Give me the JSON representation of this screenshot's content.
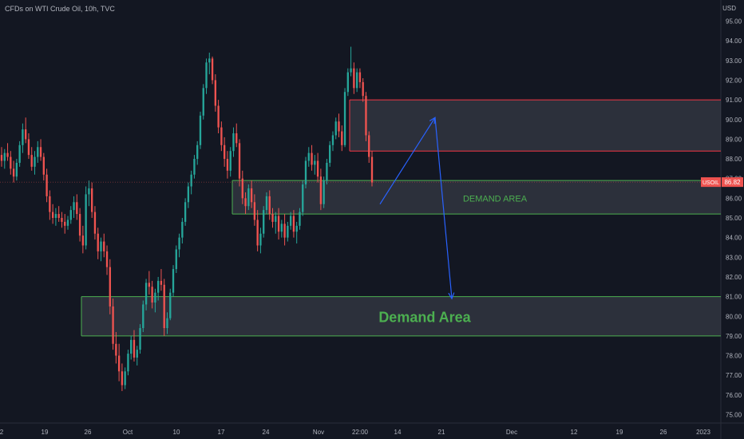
{
  "header": {
    "title": "CFDs on WTI Crude Oil, 10h, TVC"
  },
  "price_axis": {
    "unit": "USD",
    "ticks": [
      "95.00",
      "94.00",
      "93.00",
      "92.00",
      "91.00",
      "90.00",
      "89.00",
      "88.00",
      "87.00",
      "86.00",
      "85.00",
      "84.00",
      "83.00",
      "82.00",
      "81.00",
      "80.00",
      "79.00",
      "78.00",
      "77.00",
      "76.00",
      "75.00"
    ],
    "last_price_symbol": "USOIL",
    "last_price": "86.82"
  },
  "time_axis": {
    "labels": [
      "2",
      "19",
      "26",
      "Oct",
      "10",
      "17",
      "24",
      "Nov",
      "22:00",
      "14",
      "21",
      "Dec",
      "12",
      "19",
      "26",
      "2023"
    ]
  },
  "annotations": {
    "demand_area_upper": "DEMAND AREA",
    "demand_area_lower": "Demand Area"
  },
  "colors": {
    "background": "#131722",
    "up_candle": "#26a69a",
    "down_candle": "#ef5350",
    "zone_green": "#4caf50",
    "zone_red": "#f23645",
    "arrow": "#2962ff",
    "label_green": "#4caf50"
  },
  "chart_data": {
    "type": "candlestick",
    "title": "CFDs on WTI Crude Oil, 10h, TVC",
    "y_unit": "USD",
    "ylim": [
      74.6,
      95.5
    ],
    "last_price": 86.82,
    "zones": [
      {
        "kind": "supply",
        "color": "red",
        "high": 91.0,
        "low": 88.4
      },
      {
        "kind": "demand",
        "label": "DEMAND AREA",
        "color": "green",
        "high": 86.9,
        "low": 85.2
      },
      {
        "kind": "demand",
        "label": "Demand Area",
        "color": "green",
        "high": 81.0,
        "low": 79.0
      }
    ],
    "arrows": [
      {
        "from_price": 85.7,
        "to_price": 90.1
      },
      {
        "from_price": 90.1,
        "to_price": 80.9
      }
    ],
    "candles": [
      [
        88.2,
        88.6,
        87.6,
        87.9
      ],
      [
        87.9,
        88.5,
        87.5,
        88.3
      ],
      [
        88.3,
        88.8,
        87.9,
        88.1
      ],
      [
        88.1,
        88.4,
        87.2,
        87.5
      ],
      [
        87.5,
        87.9,
        86.8,
        87.1
      ],
      [
        87.1,
        88.0,
        86.9,
        87.8
      ],
      [
        87.8,
        88.9,
        87.6,
        88.7
      ],
      [
        88.7,
        89.8,
        88.3,
        89.5
      ],
      [
        89.5,
        90.1,
        88.8,
        89.0
      ],
      [
        89.0,
        89.3,
        88.0,
        88.2
      ],
      [
        88.2,
        88.6,
        87.4,
        87.6
      ],
      [
        87.6,
        88.4,
        87.2,
        88.1
      ],
      [
        88.1,
        88.9,
        87.8,
        88.6
      ],
      [
        88.6,
        89.0,
        87.9,
        88.1
      ],
      [
        88.1,
        88.3,
        86.9,
        87.2
      ],
      [
        87.2,
        87.5,
        85.8,
        86.1
      ],
      [
        86.1,
        86.4,
        84.9,
        85.3
      ],
      [
        85.3,
        85.7,
        84.7,
        85.0
      ],
      [
        85.0,
        85.5,
        84.6,
        85.2
      ],
      [
        85.2,
        85.6,
        84.8,
        85.0
      ],
      [
        85.0,
        85.3,
        84.5,
        84.8
      ],
      [
        84.8,
        85.2,
        84.2,
        84.6
      ],
      [
        84.6,
        85.1,
        84.4,
        84.9
      ],
      [
        84.9,
        85.6,
        84.7,
        85.4
      ],
      [
        85.4,
        86.1,
        85.0,
        85.8
      ],
      [
        85.8,
        86.2,
        84.9,
        85.2
      ],
      [
        85.2,
        85.5,
        83.8,
        84.1
      ],
      [
        84.1,
        84.6,
        83.2,
        83.6
      ],
      [
        83.6,
        86.6,
        83.4,
        86.2
      ],
      [
        86.2,
        86.9,
        85.6,
        86.5
      ],
      [
        86.5,
        86.8,
        85.0,
        85.3
      ],
      [
        85.3,
        85.6,
        83.9,
        84.2
      ],
      [
        84.2,
        84.5,
        82.9,
        83.3
      ],
      [
        83.3,
        84.0,
        82.8,
        83.8
      ],
      [
        83.8,
        84.2,
        83.0,
        83.3
      ],
      [
        83.3,
        83.6,
        82.1,
        82.5
      ],
      [
        82.5,
        82.9,
        80.1,
        80.5
      ],
      [
        80.5,
        80.9,
        78.3,
        78.6
      ],
      [
        78.6,
        79.2,
        77.6,
        78.0
      ],
      [
        78.0,
        78.6,
        76.7,
        77.2
      ],
      [
        77.2,
        77.6,
        76.2,
        76.5
      ],
      [
        76.5,
        77.4,
        76.3,
        77.2
      ],
      [
        77.2,
        78.3,
        77.0,
        78.1
      ],
      [
        78.1,
        79.0,
        77.8,
        78.8
      ],
      [
        78.8,
        79.3,
        77.7,
        77.9
      ],
      [
        77.9,
        78.5,
        77.5,
        78.3
      ],
      [
        78.3,
        79.6,
        78.1,
        79.4
      ],
      [
        79.4,
        80.8,
        79.2,
        80.6
      ],
      [
        80.6,
        81.9,
        80.3,
        81.7
      ],
      [
        81.7,
        82.3,
        81.1,
        81.5
      ],
      [
        81.5,
        81.8,
        80.4,
        80.7
      ],
      [
        80.7,
        81.4,
        80.2,
        81.2
      ],
      [
        81.2,
        82.0,
        80.8,
        81.8
      ],
      [
        81.8,
        82.4,
        81.3,
        81.6
      ],
      [
        81.6,
        81.9,
        79.0,
        79.4
      ],
      [
        79.4,
        80.2,
        79.1,
        79.9
      ],
      [
        79.9,
        81.4,
        79.8,
        81.2
      ],
      [
        81.2,
        82.6,
        81.0,
        82.4
      ],
      [
        82.4,
        83.6,
        82.2,
        83.4
      ],
      [
        83.4,
        84.2,
        83.0,
        84.0
      ],
      [
        84.0,
        85.0,
        83.7,
        84.8
      ],
      [
        84.8,
        86.0,
        84.6,
        85.8
      ],
      [
        85.8,
        86.8,
        85.5,
        86.6
      ],
      [
        86.6,
        87.4,
        86.2,
        87.2
      ],
      [
        87.2,
        88.2,
        87.0,
        88.0
      ],
      [
        88.0,
        88.9,
        87.7,
        88.7
      ],
      [
        88.7,
        90.4,
        88.5,
        90.2
      ],
      [
        90.2,
        91.8,
        90.0,
        91.6
      ],
      [
        91.6,
        93.1,
        91.3,
        92.9
      ],
      [
        92.9,
        93.4,
        92.3,
        93.1
      ],
      [
        93.1,
        93.2,
        91.8,
        92.0
      ],
      [
        92.0,
        92.3,
        90.4,
        90.7
      ],
      [
        90.7,
        91.0,
        89.3,
        89.6
      ],
      [
        89.6,
        89.9,
        88.4,
        88.7
      ],
      [
        88.7,
        89.1,
        87.6,
        88.0
      ],
      [
        88.0,
        88.4,
        87.0,
        87.4
      ],
      [
        87.4,
        88.6,
        87.1,
        88.4
      ],
      [
        88.4,
        89.6,
        88.1,
        89.3
      ],
      [
        89.3,
        89.8,
        88.6,
        88.8
      ],
      [
        88.8,
        89.0,
        86.6,
        87.0
      ],
      [
        87.0,
        87.4,
        85.7,
        86.0
      ],
      [
        86.0,
        86.3,
        85.2,
        85.6
      ],
      [
        85.6,
        86.7,
        85.4,
        86.5
      ],
      [
        86.5,
        86.9,
        85.5,
        85.8
      ],
      [
        85.8,
        86.2,
        84.6,
        84.9
      ],
      [
        84.9,
        85.4,
        83.3,
        83.6
      ],
      [
        83.6,
        84.5,
        83.2,
        84.2
      ],
      [
        84.2,
        85.6,
        84.0,
        85.4
      ],
      [
        85.4,
        86.3,
        85.2,
        86.1
      ],
      [
        86.1,
        86.4,
        84.9,
        85.2
      ],
      [
        85.2,
        85.5,
        84.5,
        84.8
      ],
      [
        84.8,
        85.3,
        84.2,
        85.1
      ],
      [
        85.1,
        85.5,
        83.9,
        84.3
      ],
      [
        84.3,
        84.9,
        84.0,
        84.7
      ],
      [
        84.7,
        85.2,
        83.6,
        84.0
      ],
      [
        84.0,
        84.8,
        83.8,
        84.6
      ],
      [
        84.6,
        85.3,
        84.4,
        85.1
      ],
      [
        85.1,
        85.4,
        84.0,
        84.3
      ],
      [
        84.3,
        84.8,
        83.7,
        84.6
      ],
      [
        84.6,
        85.5,
        84.4,
        85.3
      ],
      [
        85.3,
        86.9,
        85.1,
        86.7
      ],
      [
        86.7,
        88.1,
        86.5,
        87.9
      ],
      [
        87.9,
        88.6,
        87.6,
        88.3
      ],
      [
        88.3,
        88.7,
        87.4,
        87.7
      ],
      [
        87.7,
        88.2,
        87.2,
        87.9
      ],
      [
        87.9,
        88.3,
        86.8,
        87.1
      ],
      [
        87.1,
        87.5,
        85.4,
        85.7
      ],
      [
        85.7,
        87.1,
        85.5,
        86.9
      ],
      [
        86.9,
        88.0,
        86.7,
        87.8
      ],
      [
        87.8,
        88.9,
        87.6,
        88.7
      ],
      [
        88.7,
        89.4,
        88.4,
        89.2
      ],
      [
        89.2,
        90.1,
        89.0,
        89.9
      ],
      [
        89.9,
        90.3,
        89.1,
        89.4
      ],
      [
        89.4,
        89.7,
        88.4,
        88.7
      ],
      [
        88.7,
        91.6,
        88.6,
        91.4
      ],
      [
        91.4,
        92.6,
        91.2,
        92.4
      ],
      [
        92.4,
        93.7,
        92.2,
        92.6
      ],
      [
        92.6,
        92.9,
        91.3,
        91.6
      ],
      [
        91.6,
        92.6,
        91.4,
        92.4
      ],
      [
        92.4,
        92.6,
        91.6,
        91.9
      ],
      [
        91.9,
        92.1,
        90.9,
        91.2
      ],
      [
        91.2,
        91.4,
        88.9,
        89.2
      ],
      [
        89.2,
        89.4,
        87.8,
        88.1
      ],
      [
        88.1,
        88.4,
        86.6,
        86.8
      ]
    ]
  }
}
